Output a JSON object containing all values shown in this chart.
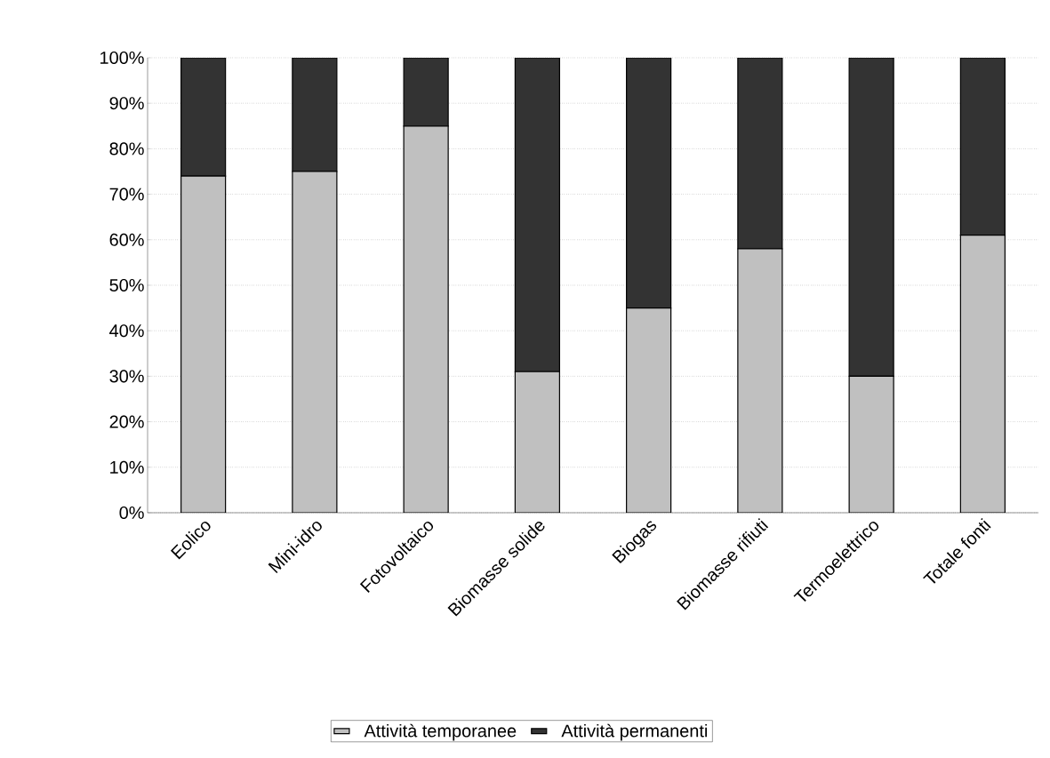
{
  "chart_data": {
    "type": "bar",
    "stacked": true,
    "categories": [
      "Eolico",
      "Mini-idro",
      "Fotovoltaico",
      "Biomasse solide",
      "Biogas",
      "Biomasse rifiuti",
      "Termoelettrico",
      "Totale fonti"
    ],
    "series": [
      {
        "name": "Attività temporanee",
        "color": "#c0c0c0",
        "values": [
          74,
          75,
          85,
          31,
          45,
          58,
          30,
          61
        ]
      },
      {
        "name": "Attività permanenti",
        "color": "#333333",
        "values": [
          26,
          25,
          15,
          69,
          55,
          42,
          70,
          39
        ]
      }
    ],
    "ylim": [
      0,
      100
    ],
    "yticks": [
      {
        "value": 0,
        "label": "0%"
      },
      {
        "value": 10,
        "label": "10%"
      },
      {
        "value": 20,
        "label": "20%"
      },
      {
        "value": 30,
        "label": "30%"
      },
      {
        "value": 40,
        "label": "40%"
      },
      {
        "value": 50,
        "label": "50%"
      },
      {
        "value": 60,
        "label": "60%"
      },
      {
        "value": 70,
        "label": "70%"
      },
      {
        "value": 80,
        "label": "80%"
      },
      {
        "value": 90,
        "label": "90%"
      },
      {
        "value": 100,
        "label": "100%"
      }
    ],
    "grid": "y",
    "legend": "bottom"
  }
}
